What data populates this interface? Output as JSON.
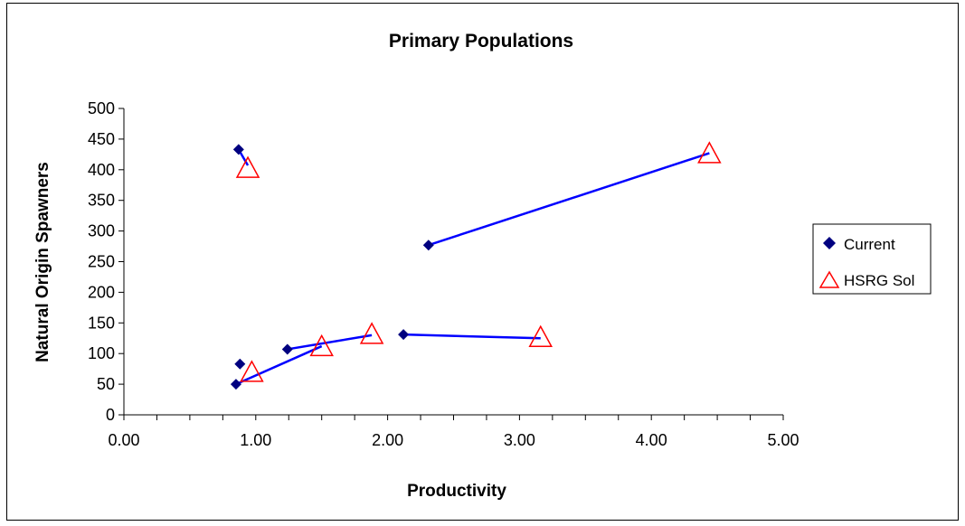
{
  "chart_data": {
    "type": "scatter",
    "title": "Primary Populations",
    "xlabel": "Productivity",
    "ylabel": "Natural Origin Spawners",
    "xlim": [
      0,
      5
    ],
    "ylim": [
      0,
      500
    ],
    "x_ticks": [
      "0.00",
      "1.00",
      "2.00",
      "3.00",
      "4.00",
      "5.00"
    ],
    "y_ticks": [
      "0",
      "50",
      "100",
      "150",
      "200",
      "250",
      "300",
      "350",
      "400",
      "450",
      "500"
    ],
    "grid": false,
    "legend_position": "right",
    "series": [
      {
        "name": "Current",
        "marker": "diamond",
        "color": "#000080",
        "points": [
          [
            0.87,
            433
          ],
          [
            0.88,
            83
          ],
          [
            0.85,
            50
          ],
          [
            1.24,
            107
          ],
          [
            2.12,
            131
          ],
          [
            2.31,
            277
          ]
        ]
      },
      {
        "name": "HSRG Sol",
        "marker": "triangle",
        "color": "#ff0000",
        "points": [
          [
            0.94,
            401
          ],
          [
            0.97,
            68
          ],
          [
            1.5,
            110
          ],
          [
            1.88,
            130
          ],
          [
            3.16,
            125
          ],
          [
            4.44,
            425
          ]
        ]
      }
    ],
    "connectors": {
      "color": "#0000ff",
      "lines": [
        [
          [
            0.87,
            433
          ],
          [
            0.94,
            407
          ]
        ],
        [
          [
            0.85,
            50
          ],
          [
            1.5,
            112
          ]
        ],
        [
          [
            1.24,
            107
          ],
          [
            1.88,
            130
          ]
        ],
        [
          [
            2.12,
            131
          ],
          [
            3.16,
            125
          ]
        ],
        [
          [
            2.31,
            277
          ],
          [
            4.44,
            427
          ]
        ]
      ]
    }
  }
}
